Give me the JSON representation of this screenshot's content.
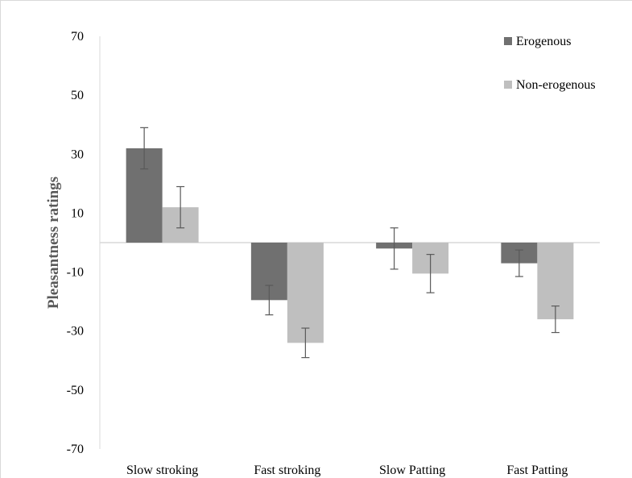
{
  "chart_data": {
    "type": "bar",
    "title": "",
    "xlabel": "",
    "ylabel": "Pleasantness ratings",
    "ylim": [
      -70,
      70
    ],
    "yticks": [
      70,
      50,
      30,
      10,
      -10,
      -30,
      -50,
      -70
    ],
    "categories": [
      "Slow stroking",
      "Fast stroking",
      "Slow Patting",
      "Fast Patting"
    ],
    "series": [
      {
        "name": "Erogenous",
        "color": "#707070",
        "values": [
          32,
          -19.5,
          -2,
          -7
        ],
        "errors": [
          7,
          5,
          7,
          4.5
        ]
      },
      {
        "name": "Non-erogenous",
        "color": "#bfbfbf",
        "values": [
          12,
          -34,
          -10.5,
          -26
        ],
        "errors": [
          7,
          5,
          6.5,
          4.5
        ]
      }
    ],
    "grid": false,
    "legend": "top-right",
    "axis_color": "#d9d9d9",
    "error_bar_color": "#595959"
  }
}
